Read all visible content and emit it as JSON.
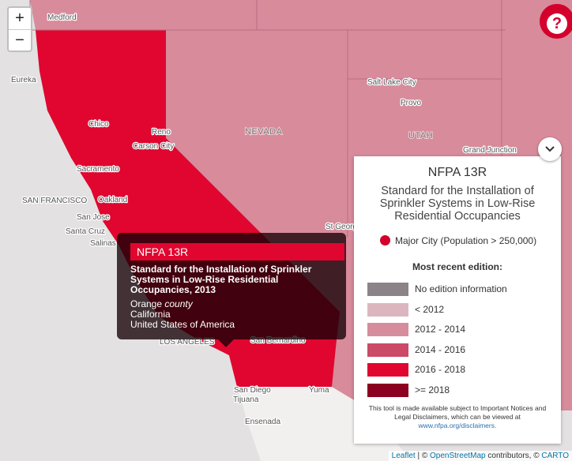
{
  "controls": {
    "zoom_in": "+",
    "zoom_out": "−",
    "help": "?"
  },
  "map_labels": [
    "Medford",
    "Eureka",
    "Chico",
    "Reno",
    "Carson City",
    "NEVADA",
    "Salt Lake City",
    "Provo",
    "UTAH",
    "Grand Junction",
    "Sacramento",
    "Oakland",
    "SAN FRANCISCO",
    "San Jose",
    "Santa Cruz",
    "Salinas",
    "St George",
    "LOS ANGELES",
    "San Bernardino",
    "San Diego",
    "Tijuana",
    "Yuma",
    "Ensenada"
  ],
  "tooltip": {
    "title": "NFPA 13R",
    "standard": "Standard for the Installation of Sprinkler Systems in Low-Rise Residential Occupancies, 2013",
    "county_name": "Orange",
    "county_word": "county",
    "state": "California",
    "country": "United States of America"
  },
  "legend": {
    "title": "NFPA 13R",
    "subtitle": "Standard for the Installation of Sprinkler Systems in Low-Rise Residential Occupancies",
    "major_city": {
      "label": "Major City (Population > 250,000)",
      "color": "#d3002b"
    },
    "heading": "Most recent edition:",
    "items": [
      {
        "label": "No edition information",
        "color": "#8c8388"
      },
      {
        "label": "< 2012",
        "color": "#dcb6bf"
      },
      {
        "label": "2012 - 2014",
        "color": "#d68c9c"
      },
      {
        "label": "2014 - 2016",
        "color": "#ca4a68"
      },
      {
        "label": "2016 - 2018",
        "color": "#e0062f"
      },
      {
        "label": ">= 2018",
        "color": "#8c0021"
      }
    ],
    "disclaimer": "This tool is made available subject to Important Notices and Legal Disclaimers, which can be viewed at",
    "link": "www.nfpa.org/disclaimers."
  },
  "attribution": {
    "leaflet": "Leaflet",
    "sep": "| ©",
    "osm": "OpenStreetMap",
    "rest": "contributors, ©",
    "carto": "CARTO"
  }
}
